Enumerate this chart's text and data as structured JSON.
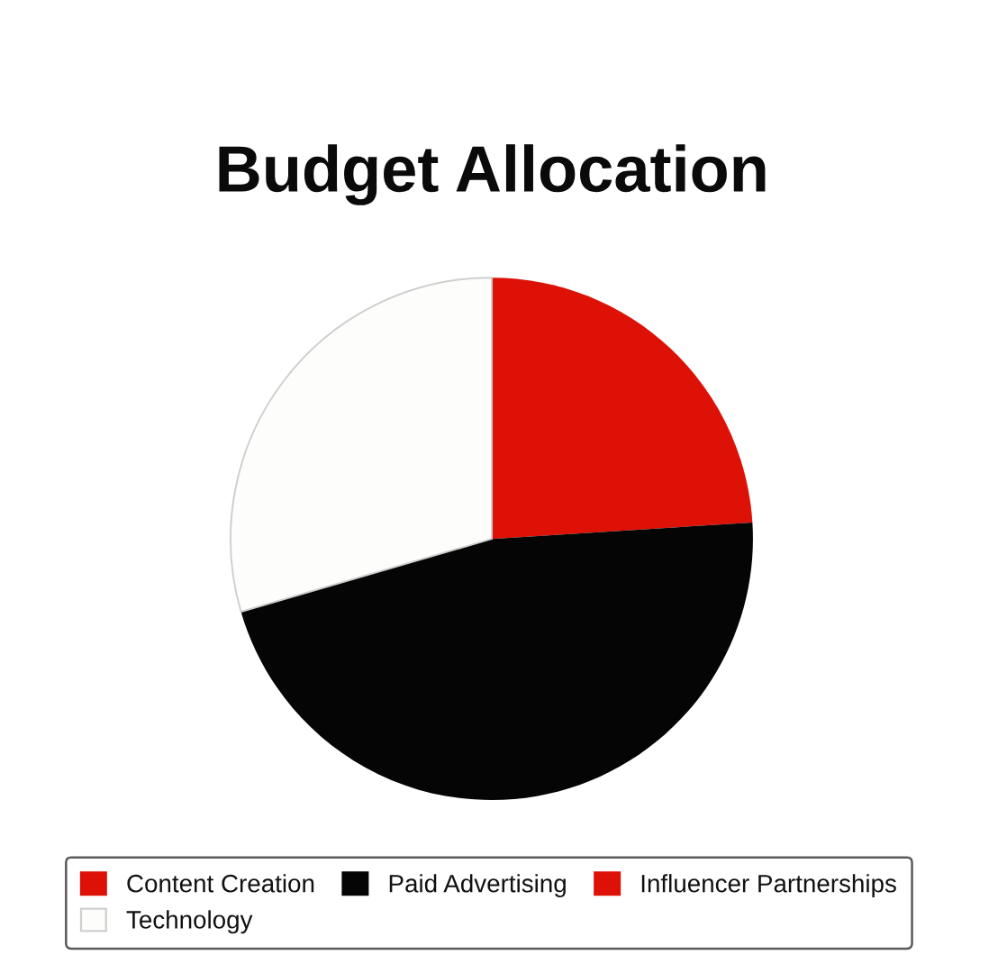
{
  "chart_data": {
    "type": "pie",
    "title": "Budget Allocation",
    "categories": [
      "Content Creation",
      "Paid Advertising",
      "Influencer Partnerships",
      "Technology"
    ],
    "values": [
      24,
      46.5,
      0,
      29.5
    ],
    "colors": [
      "#dd1106",
      "#050505",
      "#dd1106",
      "#fdfdfb"
    ],
    "legend": "bottom"
  }
}
